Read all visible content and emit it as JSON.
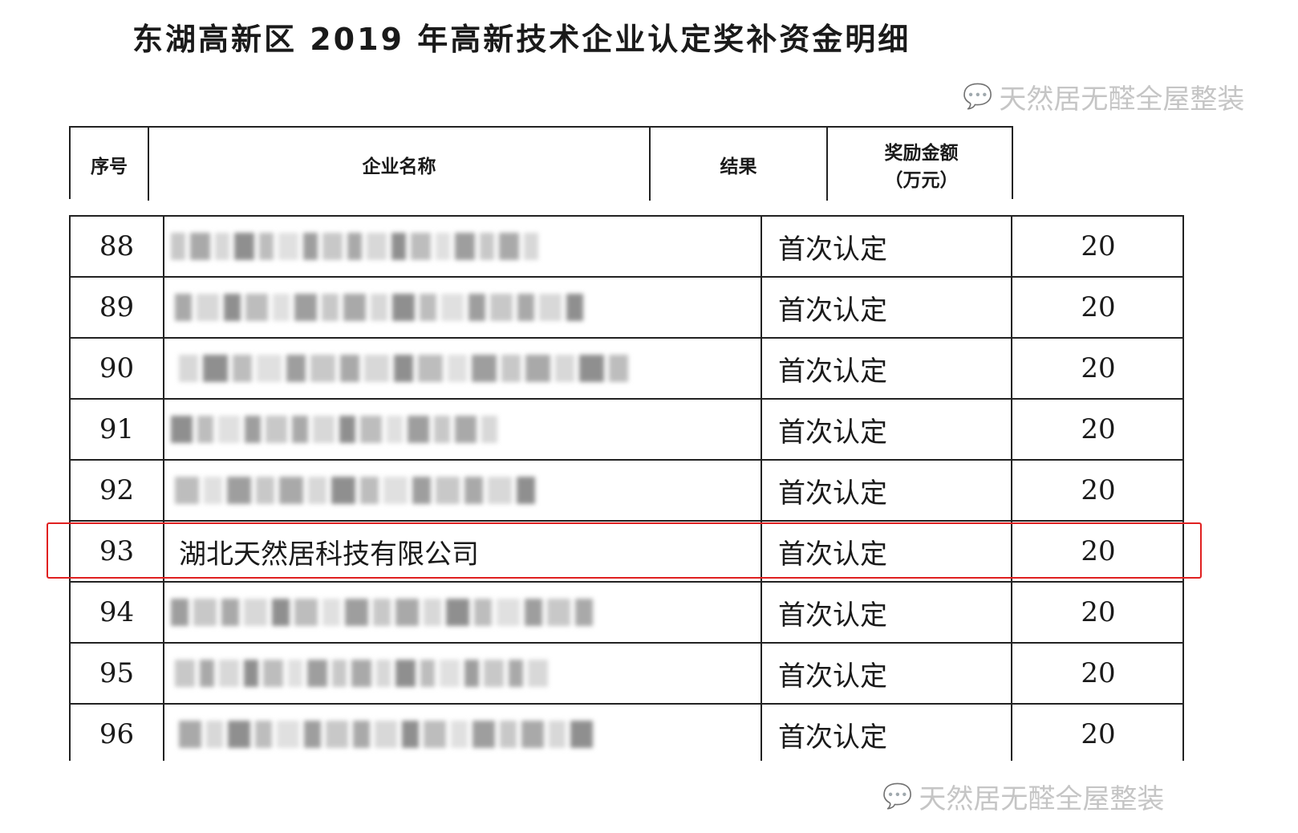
{
  "title": "东湖高新区 2019 年高新技术企业认定奖补资金明细",
  "header": {
    "col_index": "序号",
    "col_name": "企业名称",
    "col_result": "结果",
    "col_amount": "奖励金额",
    "col_amount_unit": "（万元）"
  },
  "rows": [
    {
      "index": "88",
      "name": "",
      "result": "首次认定",
      "amount": "20",
      "blurred": true
    },
    {
      "index": "89",
      "name": "",
      "result": "首次认定",
      "amount": "20",
      "blurred": true
    },
    {
      "index": "90",
      "name": "",
      "result": "首次认定",
      "amount": "20",
      "blurred": true
    },
    {
      "index": "91",
      "name": "",
      "result": "首次认定",
      "amount": "20",
      "blurred": true
    },
    {
      "index": "92",
      "name": "",
      "result": "首次认定",
      "amount": "20",
      "blurred": true
    },
    {
      "index": "93",
      "name": "湖北天然居科技有限公司",
      "result": "首次认定",
      "amount": "20",
      "blurred": false,
      "highlighted": true
    },
    {
      "index": "94",
      "name": "",
      "result": "首次认定",
      "amount": "20",
      "blurred": true
    },
    {
      "index": "95",
      "name": "",
      "result": "首次认定",
      "amount": "20",
      "blurred": true
    },
    {
      "index": "96",
      "name": "",
      "result": "首次认定",
      "amount": "20",
      "blurred": true
    }
  ],
  "watermark": {
    "text": "天然居无醛全屋整装",
    "icon": "wechat-icon"
  },
  "colors": {
    "highlight": "#e02020",
    "border": "#222222"
  }
}
